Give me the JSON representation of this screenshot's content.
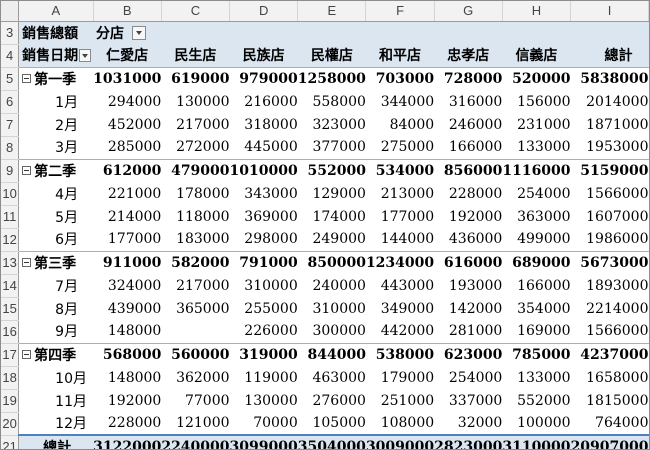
{
  "sheet": {
    "columns": [
      "A",
      "B",
      "C",
      "D",
      "E",
      "F",
      "G",
      "H",
      "I"
    ],
    "header": {
      "row3": {
        "num": "3",
        "label": "銷售總額",
        "filter_label": "分店"
      },
      "row4": {
        "num": "4",
        "label": "銷售日期",
        "stores": [
          "仁愛店",
          "民生店",
          "民族店",
          "民權店",
          "和平店",
          "忠孝店",
          "信義店"
        ],
        "total_label": "總計"
      }
    },
    "rows": [
      {
        "num": "5",
        "kind": "quarter",
        "label": "第一季",
        "values": [
          "1031000",
          "619000",
          "979000",
          "1258000",
          "703000",
          "728000",
          "520000",
          "5838000"
        ]
      },
      {
        "num": "6",
        "kind": "month",
        "label": "1月",
        "values": [
          "294000",
          "130000",
          "216000",
          "558000",
          "344000",
          "316000",
          "156000",
          "2014000"
        ]
      },
      {
        "num": "7",
        "kind": "month",
        "label": "2月",
        "values": [
          "452000",
          "217000",
          "318000",
          "323000",
          "84000",
          "246000",
          "231000",
          "1871000"
        ]
      },
      {
        "num": "8",
        "kind": "month",
        "label": "3月",
        "values": [
          "285000",
          "272000",
          "445000",
          "377000",
          "275000",
          "166000",
          "133000",
          "1953000"
        ]
      },
      {
        "num": "9",
        "kind": "quarter",
        "label": "第二季",
        "values": [
          "612000",
          "479000",
          "1010000",
          "552000",
          "534000",
          "856000",
          "1116000",
          "5159000"
        ]
      },
      {
        "num": "10",
        "kind": "month",
        "label": "4月",
        "values": [
          "221000",
          "178000",
          "343000",
          "129000",
          "213000",
          "228000",
          "254000",
          "1566000"
        ]
      },
      {
        "num": "11",
        "kind": "month",
        "label": "5月",
        "values": [
          "214000",
          "118000",
          "369000",
          "174000",
          "177000",
          "192000",
          "363000",
          "1607000"
        ]
      },
      {
        "num": "12",
        "kind": "month",
        "label": "6月",
        "values": [
          "177000",
          "183000",
          "298000",
          "249000",
          "144000",
          "436000",
          "499000",
          "1986000"
        ]
      },
      {
        "num": "13",
        "kind": "quarter",
        "label": "第三季",
        "values": [
          "911000",
          "582000",
          "791000",
          "850000",
          "1234000",
          "616000",
          "689000",
          "5673000"
        ]
      },
      {
        "num": "14",
        "kind": "month",
        "label": "7月",
        "values": [
          "324000",
          "217000",
          "310000",
          "240000",
          "443000",
          "193000",
          "166000",
          "1893000"
        ]
      },
      {
        "num": "15",
        "kind": "month",
        "label": "8月",
        "values": [
          "439000",
          "365000",
          "255000",
          "310000",
          "349000",
          "142000",
          "354000",
          "2214000"
        ]
      },
      {
        "num": "16",
        "kind": "month",
        "label": "9月",
        "values": [
          "148000",
          "",
          "226000",
          "300000",
          "442000",
          "281000",
          "169000",
          "1566000"
        ]
      },
      {
        "num": "17",
        "kind": "quarter",
        "label": "第四季",
        "values": [
          "568000",
          "560000",
          "319000",
          "844000",
          "538000",
          "623000",
          "785000",
          "4237000"
        ]
      },
      {
        "num": "18",
        "kind": "month",
        "label": "10月",
        "values": [
          "148000",
          "362000",
          "119000",
          "463000",
          "179000",
          "254000",
          "133000",
          "1658000"
        ]
      },
      {
        "num": "19",
        "kind": "month",
        "label": "11月",
        "values": [
          "192000",
          "77000",
          "130000",
          "276000",
          "251000",
          "337000",
          "552000",
          "1815000"
        ]
      },
      {
        "num": "20",
        "kind": "month",
        "label": "12月",
        "values": [
          "228000",
          "121000",
          "70000",
          "105000",
          "108000",
          "32000",
          "100000",
          "764000"
        ]
      },
      {
        "num": "21",
        "kind": "total",
        "label": "總計",
        "values": [
          "3122000",
          "2240000",
          "3099000",
          "3504000",
          "3009000",
          "2823000",
          "3110000",
          "20907000"
        ]
      }
    ]
  },
  "colors": {
    "header_fill": "#dce6f1",
    "row_separator": "#95b3d7",
    "total_border": "#4f81bd"
  }
}
